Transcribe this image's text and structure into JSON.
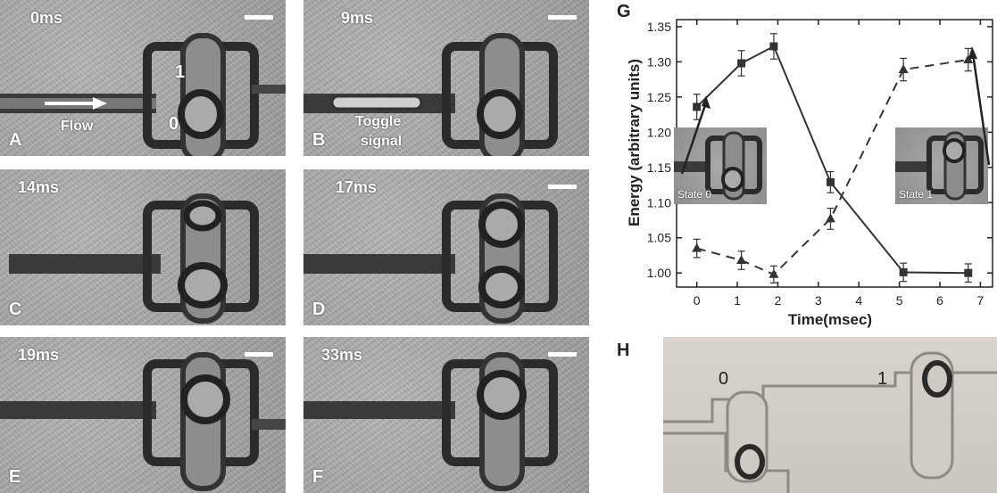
{
  "panels": [
    {
      "letter": "A",
      "time": "0ms",
      "scale_bar": true
    },
    {
      "letter": "B",
      "time": "9ms",
      "scale_bar": true
    },
    {
      "letter": "C",
      "time": "14ms",
      "scale_bar": false
    },
    {
      "letter": "D",
      "time": "17ms",
      "scale_bar": true
    },
    {
      "letter": "E",
      "time": "19ms",
      "scale_bar": true
    },
    {
      "letter": "F",
      "time": "33ms",
      "scale_bar": true
    }
  ],
  "overlays": {
    "flow": "Flow",
    "state_one": "1",
    "state_zero": "0",
    "toggle_line1": "Toggle",
    "toggle_line2": "signal"
  },
  "panel_g_letter": "G",
  "panel_h": {
    "letter": "H",
    "label_zero": "0",
    "label_one": "1"
  },
  "chart_data": {
    "type": "line",
    "xlabel": "Time(msec)",
    "ylabel": "Energy (arbitrary units)",
    "xlim": [
      -0.5,
      7.3
    ],
    "ylim": [
      0.98,
      1.36
    ],
    "xticks": [
      0,
      1,
      2,
      3,
      4,
      5,
      6,
      7
    ],
    "yticks": [
      1.0,
      1.05,
      1.1,
      1.15,
      1.2,
      1.25,
      1.3,
      1.35
    ],
    "ytick_labels": [
      "1.00",
      "1.05",
      "1.10",
      "1.15",
      "1.20",
      "1.25",
      "1.30",
      "1.35"
    ],
    "grid": false,
    "series": [
      {
        "marker": "square",
        "line": "solid",
        "x": [
          0,
          1.1,
          1.9,
          3.3,
          5.1,
          6.7
        ],
        "y": [
          1.236,
          1.298,
          1.322,
          1.129,
          1.001,
          1.0
        ],
        "err": [
          0.018,
          0.018,
          0.018,
          0.015,
          0.013,
          0.013
        ]
      },
      {
        "marker": "triangle",
        "line": "dashed",
        "x": [
          0,
          1.1,
          1.9,
          3.3,
          5.1,
          6.7
        ],
        "y": [
          1.035,
          1.018,
          0.998,
          1.077,
          1.289,
          1.303
        ],
        "err": [
          0.013,
          0.013,
          0.012,
          0.015,
          0.016,
          0.016
        ]
      }
    ],
    "insets": [
      {
        "caption": "State 0"
      },
      {
        "caption": "State 1"
      }
    ]
  }
}
